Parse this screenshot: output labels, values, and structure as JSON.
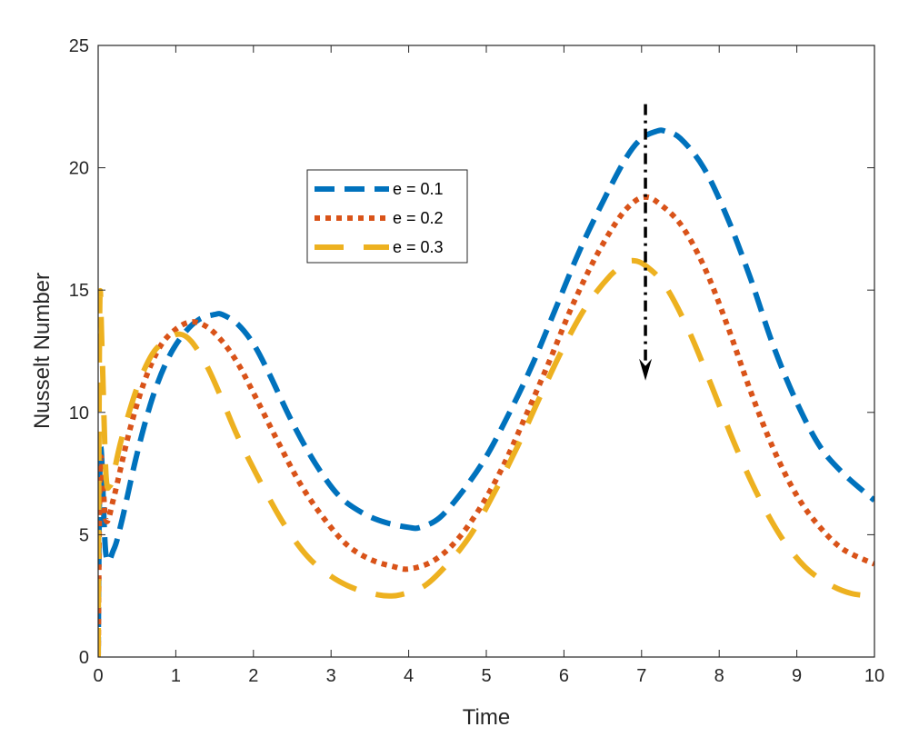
{
  "chart_data": {
    "type": "line",
    "xlabel": "Time",
    "ylabel": "Nusselt Number",
    "xlim": [
      0,
      10
    ],
    "ylim": [
      0,
      25
    ],
    "xticks": [
      "0",
      "1",
      "2",
      "3",
      "4",
      "5",
      "6",
      "7",
      "8",
      "9",
      "10"
    ],
    "yticks": [
      "0",
      "5",
      "10",
      "15",
      "20",
      "25"
    ],
    "grid": false,
    "legend_position": "upper-middle",
    "series": [
      {
        "name": "e = 0.1",
        "color": "#0072BD",
        "line_style": "dashed",
        "x": [
          0,
          0.03,
          0.1,
          0.2,
          0.3,
          0.5,
          0.7,
          0.9,
          1.1,
          1.3,
          1.5,
          1.6,
          1.8,
          2.0,
          2.2,
          2.5,
          2.8,
          3.1,
          3.4,
          3.7,
          4.0,
          4.15,
          4.4,
          4.7,
          5.0,
          5.3,
          5.6,
          5.9,
          6.2,
          6.5,
          6.8,
          7.0,
          7.2,
          7.3,
          7.5,
          7.8,
          8.1,
          8.4,
          8.7,
          9.0,
          9.3,
          9.6,
          10.0
        ],
        "y": [
          0,
          8.5,
          4.2,
          4.4,
          5.5,
          8.3,
          10.6,
          12.2,
          13.2,
          13.8,
          14.0,
          14.0,
          13.6,
          12.8,
          11.6,
          9.6,
          7.9,
          6.6,
          5.9,
          5.5,
          5.3,
          5.3,
          5.7,
          6.8,
          8.2,
          10.0,
          12.0,
          14.3,
          16.6,
          18.6,
          20.4,
          21.2,
          21.5,
          21.5,
          21.2,
          20.0,
          18.0,
          15.5,
          12.7,
          10.4,
          8.6,
          7.5,
          6.4
        ]
      },
      {
        "name": "e = 0.2",
        "color": "#D95319",
        "line_style": "dotted",
        "x": [
          0,
          0.03,
          0.1,
          0.2,
          0.4,
          0.6,
          0.8,
          1.0,
          1.2,
          1.4,
          1.6,
          1.8,
          2.0,
          2.3,
          2.6,
          2.9,
          3.2,
          3.5,
          3.8,
          4.0,
          4.3,
          4.6,
          4.9,
          5.2,
          5.5,
          5.8,
          6.1,
          6.4,
          6.7,
          6.9,
          7.05,
          7.2,
          7.5,
          7.8,
          8.1,
          8.4,
          8.7,
          9.0,
          9.3,
          9.6,
          10.0
        ],
        "y": [
          0,
          8.0,
          5.6,
          6.5,
          9.2,
          11.3,
          12.7,
          13.4,
          13.7,
          13.5,
          12.9,
          12.0,
          10.8,
          8.9,
          7.1,
          5.7,
          4.6,
          4.0,
          3.7,
          3.6,
          3.9,
          4.7,
          6.0,
          7.7,
          9.8,
          12.0,
          14.3,
          16.3,
          17.9,
          18.6,
          18.8,
          18.6,
          17.7,
          16.0,
          13.6,
          10.9,
          8.5,
          6.6,
          5.3,
          4.4,
          3.8
        ]
      },
      {
        "name": "e = 0.3",
        "color": "#EDB120",
        "line_style": "long-dashed",
        "x": [
          0,
          0.02,
          0.05,
          0.1,
          0.15,
          0.2,
          0.3,
          0.5,
          0.7,
          0.9,
          1.05,
          1.2,
          1.4,
          1.6,
          1.8,
          2.1,
          2.4,
          2.7,
          3.0,
          3.3,
          3.6,
          3.75,
          3.9,
          4.2,
          4.5,
          4.8,
          5.1,
          5.4,
          5.7,
          6.0,
          6.3,
          6.6,
          6.8,
          6.9,
          7.05,
          7.3,
          7.6,
          7.9,
          8.2,
          8.5,
          8.8,
          9.1,
          9.4,
          9.7,
          10.0
        ],
        "y": [
          0,
          14.2,
          12.5,
          7.5,
          7.0,
          7.5,
          8.9,
          11.0,
          12.4,
          13.0,
          13.2,
          12.9,
          11.9,
          10.5,
          9.0,
          7.1,
          5.4,
          4.1,
          3.3,
          2.8,
          2.55,
          2.5,
          2.55,
          2.9,
          3.8,
          5.0,
          6.7,
          8.6,
          10.7,
          12.7,
          14.4,
          15.6,
          16.1,
          16.2,
          16.0,
          15.2,
          13.4,
          11.1,
          8.7,
          6.6,
          4.9,
          3.7,
          3.0,
          2.6,
          2.5
        ]
      }
    ],
    "annotation": {
      "type": "arrow",
      "color": "#000000",
      "line_style": "dash-dot",
      "x": 7.05,
      "y_from": 22.6,
      "y_to": 11.3
    }
  }
}
